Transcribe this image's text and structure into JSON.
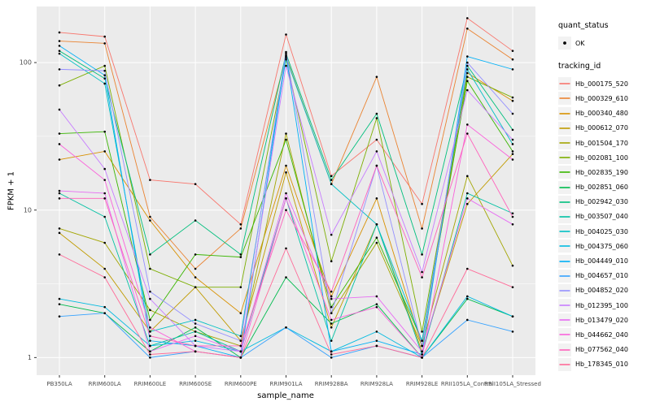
{
  "figure": {
    "x_axis_title": "sample_name",
    "y_axis_title": "FPKM + 1"
  },
  "legend": {
    "quant_status_title": "quant_status",
    "quant_status_entries": [
      "OK"
    ],
    "tracking_id_title": "tracking_id",
    "key_background": "#F2F2F2"
  },
  "chart_data": {
    "type": "line",
    "title": "",
    "xlabel": "sample_name",
    "ylabel": "FPKM + 1",
    "y_scale": "log10",
    "y_domain": [
      0.76,
      240
    ],
    "y_ticks": [
      1,
      10,
      100
    ],
    "y_tick_labels": [
      "1",
      "10",
      "100"
    ],
    "y_minor_ticks": [
      3.162,
      31.62
    ],
    "grid": true,
    "legend_position": "right",
    "panel_background": "#EBEBEB",
    "gridline_color": "#FFFFFF",
    "point_color": "#000000",
    "tick_text_color": "#4D4D4D",
    "point_shape_legend": {
      "title": "quant_status",
      "entries": [
        "OK"
      ]
    },
    "categories": [
      "PB350LA",
      "RRIM600LA",
      "RRIM600LE",
      "RRIM600SE",
      "RRIM600PE",
      "RRIM901LA",
      "RRIM928BA",
      "RRIM928LA",
      "RRIM928LE",
      "RRII105LA_Control",
      "RRII105LA_Stressed"
    ],
    "series": [
      {
        "name": "Hb_000175_520",
        "color": "#F8766D",
        "values": [
          160,
          150,
          16,
          15,
          8,
          155,
          17,
          30,
          11,
          200,
          120
        ]
      },
      {
        "name": "Hb_000329_610",
        "color": "#EA8331",
        "values": [
          140,
          135,
          9,
          4,
          7.5,
          110,
          15,
          80,
          7.5,
          170,
          105
        ]
      },
      {
        "name": "Hb_000340_480",
        "color": "#D89000",
        "values": [
          22,
          25,
          8.5,
          3.5,
          2,
          20,
          2.6,
          12,
          1.2,
          85,
          55
        ]
      },
      {
        "name": "Hb_000612_070",
        "color": "#C09B00",
        "values": [
          7,
          4,
          1.5,
          3,
          1.3,
          18,
          1.6,
          8,
          1.1,
          11,
          24
        ]
      },
      {
        "name": "Hb_001504_170",
        "color": "#A3A500",
        "values": [
          7.5,
          6,
          2.1,
          1.5,
          1.2,
          33,
          2,
          6,
          1.2,
          17,
          4.2
        ]
      },
      {
        "name": "Hb_002081_100",
        "color": "#7CAE00",
        "values": [
          70,
          95,
          4,
          3,
          3,
          105,
          4.5,
          42,
          1.5,
          80,
          58
        ]
      },
      {
        "name": "Hb_002835_190",
        "color": "#39B600",
        "values": [
          33,
          34,
          1.8,
          5,
          4.8,
          30,
          2.2,
          6.5,
          1.3,
          75,
          25
        ]
      },
      {
        "name": "Hb_002851_060",
        "color": "#00BB4E",
        "values": [
          2.3,
          2,
          1.1,
          1.6,
          1,
          3.5,
          1.7,
          2.3,
          1,
          2.5,
          1.9
        ]
      },
      {
        "name": "Hb_002942_030",
        "color": "#00BF7D",
        "values": [
          120,
          78,
          5,
          8.5,
          5,
          115,
          16,
          45,
          5,
          95,
          35
        ]
      },
      {
        "name": "Hb_003507_040",
        "color": "#00C1A3",
        "values": [
          13,
          9,
          1.2,
          1.5,
          1.1,
          12,
          1.3,
          8,
          1.05,
          13,
          9.5
        ]
      },
      {
        "name": "Hb_004025_030",
        "color": "#00BFC4",
        "values": [
          115,
          72,
          1.5,
          1.8,
          1.4,
          108,
          15,
          8,
          1.3,
          90,
          28
        ]
      },
      {
        "name": "Hb_004375_060",
        "color": "#00BAE0",
        "values": [
          2.5,
          2.2,
          1.2,
          1.3,
          1.1,
          1.6,
          1.1,
          1.5,
          1,
          2.6,
          1.9
        ]
      },
      {
        "name": "Hb_004449_010",
        "color": "#00B0F6",
        "values": [
          130,
          82,
          1.3,
          1.2,
          1,
          112,
          1.1,
          1.3,
          1.05,
          110,
          90
        ]
      },
      {
        "name": "Hb_004657_010",
        "color": "#35A2FF",
        "values": [
          1.9,
          2,
          1,
          1.1,
          1,
          1.6,
          1,
          1.2,
          1,
          1.8,
          1.5
        ]
      },
      {
        "name": "Hb_004852_020",
        "color": "#9590FF",
        "values": [
          90,
          88,
          2.8,
          1.7,
          1.3,
          118,
          2,
          20,
          1.2,
          100,
          45
        ]
      },
      {
        "name": "Hb_012395_100",
        "color": "#C77CFF",
        "values": [
          48,
          19,
          2.5,
          1.2,
          1.1,
          95,
          6.8,
          25,
          3.8,
          65,
          30
        ]
      },
      {
        "name": "Hb_013479_020",
        "color": "#E76BF3",
        "values": [
          13.5,
          13,
          1.1,
          1.4,
          1.1,
          13,
          2.5,
          2.6,
          1.1,
          12,
          8
        ]
      },
      {
        "name": "Hb_044662_040",
        "color": "#FA62DB",
        "values": [
          28,
          16,
          1.6,
          1.1,
          1,
          12,
          1.8,
          2.2,
          1,
          38,
          22
        ]
      },
      {
        "name": "Hb_077562_040",
        "color": "#FF62BC",
        "values": [
          12,
          12,
          1.4,
          1.2,
          1.2,
          10,
          2.8,
          20,
          3.5,
          33,
          9
        ]
      },
      {
        "name": "Hb_178345_010",
        "color": "#FF6A98",
        "values": [
          5,
          3.5,
          1.05,
          1.1,
          1,
          5.5,
          1.05,
          1.2,
          1,
          4,
          3
        ]
      }
    ]
  }
}
